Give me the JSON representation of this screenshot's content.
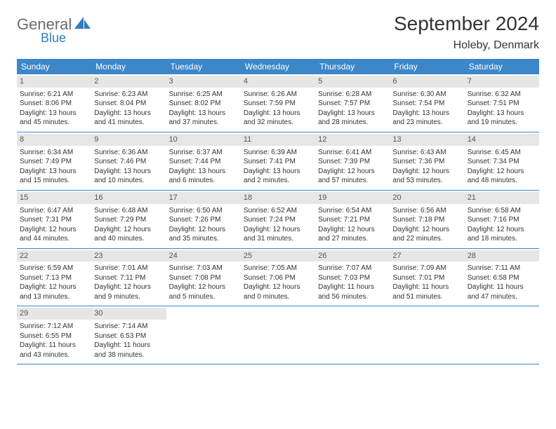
{
  "logo": {
    "general": "General",
    "blue": "Blue"
  },
  "title": "September 2024",
  "location": "Holeby, Denmark",
  "colors": {
    "header_bg": "#3b87c8",
    "header_text": "#ffffff",
    "daynum_bg": "#e6e6e6",
    "daynum_text": "#555555",
    "body_text": "#333333",
    "rule": "#3b87c8",
    "logo_gray": "#6b6b6b",
    "logo_blue": "#2f7fbf"
  },
  "weekdays": [
    "Sunday",
    "Monday",
    "Tuesday",
    "Wednesday",
    "Thursday",
    "Friday",
    "Saturday"
  ],
  "weeks": [
    [
      {
        "n": "1",
        "sr": "6:21 AM",
        "ss": "8:06 PM",
        "dl": "13 hours and 45 minutes."
      },
      {
        "n": "2",
        "sr": "6:23 AM",
        "ss": "8:04 PM",
        "dl": "13 hours and 41 minutes."
      },
      {
        "n": "3",
        "sr": "6:25 AM",
        "ss": "8:02 PM",
        "dl": "13 hours and 37 minutes."
      },
      {
        "n": "4",
        "sr": "6:26 AM",
        "ss": "7:59 PM",
        "dl": "13 hours and 32 minutes."
      },
      {
        "n": "5",
        "sr": "6:28 AM",
        "ss": "7:57 PM",
        "dl": "13 hours and 28 minutes."
      },
      {
        "n": "6",
        "sr": "6:30 AM",
        "ss": "7:54 PM",
        "dl": "13 hours and 23 minutes."
      },
      {
        "n": "7",
        "sr": "6:32 AM",
        "ss": "7:51 PM",
        "dl": "13 hours and 19 minutes."
      }
    ],
    [
      {
        "n": "8",
        "sr": "6:34 AM",
        "ss": "7:49 PM",
        "dl": "13 hours and 15 minutes."
      },
      {
        "n": "9",
        "sr": "6:36 AM",
        "ss": "7:46 PM",
        "dl": "13 hours and 10 minutes."
      },
      {
        "n": "10",
        "sr": "6:37 AM",
        "ss": "7:44 PM",
        "dl": "13 hours and 6 minutes."
      },
      {
        "n": "11",
        "sr": "6:39 AM",
        "ss": "7:41 PM",
        "dl": "13 hours and 2 minutes."
      },
      {
        "n": "12",
        "sr": "6:41 AM",
        "ss": "7:39 PM",
        "dl": "12 hours and 57 minutes."
      },
      {
        "n": "13",
        "sr": "6:43 AM",
        "ss": "7:36 PM",
        "dl": "12 hours and 53 minutes."
      },
      {
        "n": "14",
        "sr": "6:45 AM",
        "ss": "7:34 PM",
        "dl": "12 hours and 48 minutes."
      }
    ],
    [
      {
        "n": "15",
        "sr": "6:47 AM",
        "ss": "7:31 PM",
        "dl": "12 hours and 44 minutes."
      },
      {
        "n": "16",
        "sr": "6:48 AM",
        "ss": "7:29 PM",
        "dl": "12 hours and 40 minutes."
      },
      {
        "n": "17",
        "sr": "6:50 AM",
        "ss": "7:26 PM",
        "dl": "12 hours and 35 minutes."
      },
      {
        "n": "18",
        "sr": "6:52 AM",
        "ss": "7:24 PM",
        "dl": "12 hours and 31 minutes."
      },
      {
        "n": "19",
        "sr": "6:54 AM",
        "ss": "7:21 PM",
        "dl": "12 hours and 27 minutes."
      },
      {
        "n": "20",
        "sr": "6:56 AM",
        "ss": "7:18 PM",
        "dl": "12 hours and 22 minutes."
      },
      {
        "n": "21",
        "sr": "6:58 AM",
        "ss": "7:16 PM",
        "dl": "12 hours and 18 minutes."
      }
    ],
    [
      {
        "n": "22",
        "sr": "6:59 AM",
        "ss": "7:13 PM",
        "dl": "12 hours and 13 minutes."
      },
      {
        "n": "23",
        "sr": "7:01 AM",
        "ss": "7:11 PM",
        "dl": "12 hours and 9 minutes."
      },
      {
        "n": "24",
        "sr": "7:03 AM",
        "ss": "7:08 PM",
        "dl": "12 hours and 5 minutes."
      },
      {
        "n": "25",
        "sr": "7:05 AM",
        "ss": "7:06 PM",
        "dl": "12 hours and 0 minutes."
      },
      {
        "n": "26",
        "sr": "7:07 AM",
        "ss": "7:03 PM",
        "dl": "11 hours and 56 minutes."
      },
      {
        "n": "27",
        "sr": "7:09 AM",
        "ss": "7:01 PM",
        "dl": "11 hours and 51 minutes."
      },
      {
        "n": "28",
        "sr": "7:11 AM",
        "ss": "6:58 PM",
        "dl": "11 hours and 47 minutes."
      }
    ],
    [
      {
        "n": "29",
        "sr": "7:12 AM",
        "ss": "6:55 PM",
        "dl": "11 hours and 43 minutes."
      },
      {
        "n": "30",
        "sr": "7:14 AM",
        "ss": "6:53 PM",
        "dl": "11 hours and 38 minutes."
      },
      null,
      null,
      null,
      null,
      null
    ]
  ],
  "labels": {
    "sunrise": "Sunrise:",
    "sunset": "Sunset:",
    "daylight": "Daylight:"
  }
}
